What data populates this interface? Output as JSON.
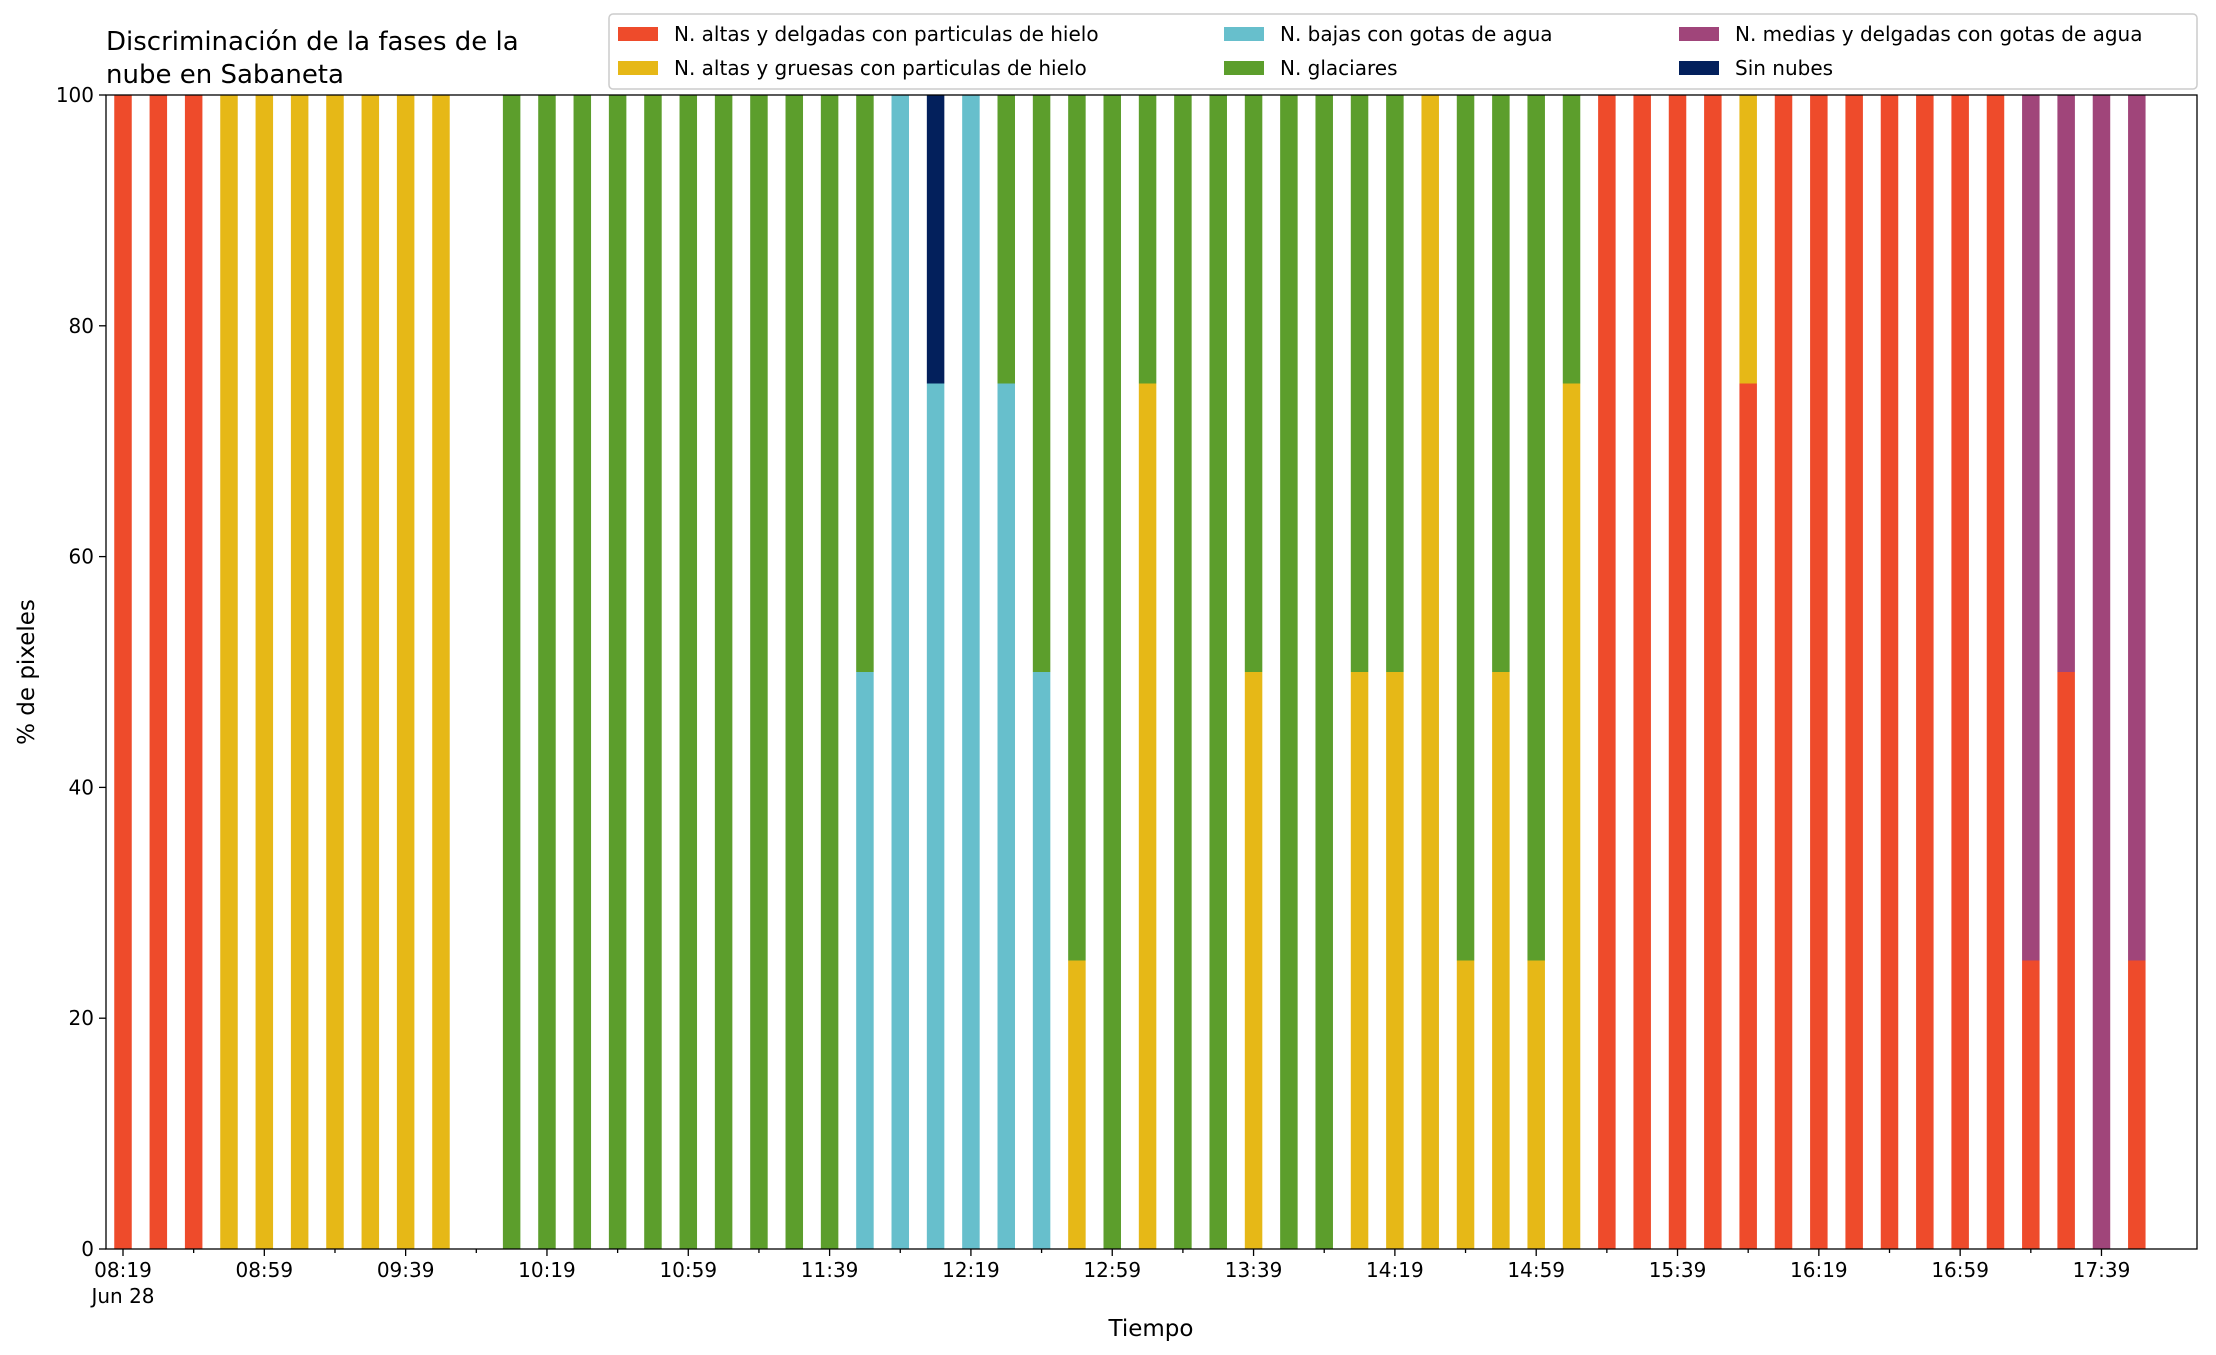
{
  "chart_data": {
    "type": "stacked_bar",
    "title": [
      "Discriminación de la fases de la",
      "nube en Sabaneta"
    ],
    "x_label": "Tiempo",
    "y_label": "% de pixeles",
    "x_date_label": "Jun 28",
    "categories": [
      "08:19",
      null,
      null,
      null,
      "08:59",
      null,
      null,
      null,
      "09:39",
      null,
      null,
      null,
      "10:19",
      null,
      null,
      null,
      "10:59",
      null,
      null,
      null,
      "11:39",
      null,
      null,
      null,
      "12:19",
      null,
      null,
      null,
      "12:59",
      null,
      null,
      null,
      "13:39",
      null,
      null,
      null,
      "14:19",
      null,
      null,
      null,
      "14:59",
      null,
      null,
      null,
      "15:39",
      null,
      null,
      null,
      "16:19",
      null,
      null,
      null,
      "16:59",
      null,
      null,
      null,
      "17:39",
      null
    ],
    "series": [
      {
        "name": "N. altas y delgadas con particulas de hielo",
        "color": "#ee4b2b",
        "values": [
          100,
          100,
          100,
          0,
          0,
          0,
          0,
          0,
          0,
          0,
          0,
          0,
          0,
          0,
          0,
          0,
          0,
          0,
          0,
          0,
          0,
          0,
          0,
          0,
          0,
          0,
          0,
          0,
          0,
          0,
          0,
          0,
          0,
          0,
          0,
          0,
          0,
          0,
          0,
          0,
          0,
          0,
          100,
          100,
          100,
          100,
          75,
          100,
          100,
          100,
          100,
          100,
          100,
          100,
          25,
          50,
          0,
          25
        ]
      },
      {
        "name": "N. altas y gruesas con particulas de hielo",
        "color": "#e6b817",
        "values": [
          0,
          0,
          0,
          100,
          100,
          100,
          100,
          100,
          100,
          100,
          0,
          0,
          0,
          0,
          0,
          0,
          0,
          0,
          0,
          0,
          0,
          0,
          0,
          0,
          0,
          0,
          0,
          25,
          0,
          75,
          0,
          0,
          50,
          0,
          0,
          50,
          50,
          100,
          25,
          50,
          25,
          75,
          0,
          0,
          0,
          0,
          25,
          0,
          0,
          0,
          0,
          0,
          0,
          0,
          0,
          0,
          0,
          0
        ]
      },
      {
        "name": "N. bajas con gotas de agua",
        "color": "#67bfcc",
        "values": [
          0,
          0,
          0,
          0,
          0,
          0,
          0,
          0,
          0,
          0,
          0,
          0,
          0,
          0,
          0,
          0,
          0,
          0,
          0,
          0,
          0,
          50,
          100,
          75,
          100,
          75,
          50,
          0,
          0,
          0,
          0,
          0,
          0,
          0,
          0,
          0,
          0,
          0,
          0,
          0,
          0,
          0,
          0,
          0,
          0,
          0,
          0,
          0,
          0,
          0,
          0,
          0,
          0,
          0,
          0,
          0,
          0,
          0
        ]
      },
      {
        "name": "N. glaciares",
        "color": "#5c9e2c",
        "values": [
          0,
          0,
          0,
          0,
          0,
          0,
          0,
          0,
          0,
          0,
          0,
          100,
          100,
          100,
          100,
          100,
          100,
          100,
          100,
          100,
          100,
          50,
          0,
          0,
          0,
          25,
          50,
          75,
          100,
          25,
          100,
          100,
          50,
          100,
          100,
          50,
          50,
          0,
          75,
          50,
          75,
          25,
          0,
          0,
          0,
          0,
          0,
          0,
          0,
          0,
          0,
          0,
          0,
          0,
          0,
          0,
          0,
          0
        ]
      },
      {
        "name": "N. medias y delgadas con gotas de agua",
        "color": "#a0457a",
        "values": [
          0,
          0,
          0,
          0,
          0,
          0,
          0,
          0,
          0,
          0,
          0,
          0,
          0,
          0,
          0,
          0,
          0,
          0,
          0,
          0,
          0,
          0,
          0,
          0,
          0,
          0,
          0,
          0,
          0,
          0,
          0,
          0,
          0,
          0,
          0,
          0,
          0,
          0,
          0,
          0,
          0,
          0,
          0,
          0,
          0,
          0,
          0,
          0,
          0,
          0,
          0,
          0,
          0,
          0,
          75,
          50,
          100,
          75
        ]
      },
      {
        "name": "Sin nubes",
        "color": "#03205c",
        "values": [
          0,
          0,
          0,
          0,
          0,
          0,
          0,
          0,
          0,
          0,
          0,
          0,
          0,
          0,
          0,
          0,
          0,
          0,
          0,
          0,
          0,
          0,
          0,
          25,
          0,
          0,
          0,
          0,
          0,
          0,
          0,
          0,
          0,
          0,
          0,
          0,
          0,
          0,
          0,
          0,
          0,
          0,
          0,
          0,
          0,
          0,
          0,
          0,
          0,
          0,
          0,
          0,
          0,
          0,
          0,
          0,
          0,
          0
        ]
      }
    ],
    "ylim": [
      0,
      100
    ],
    "yticks": [
      0,
      20,
      40,
      60,
      80,
      100
    ],
    "legend": "upper right"
  }
}
